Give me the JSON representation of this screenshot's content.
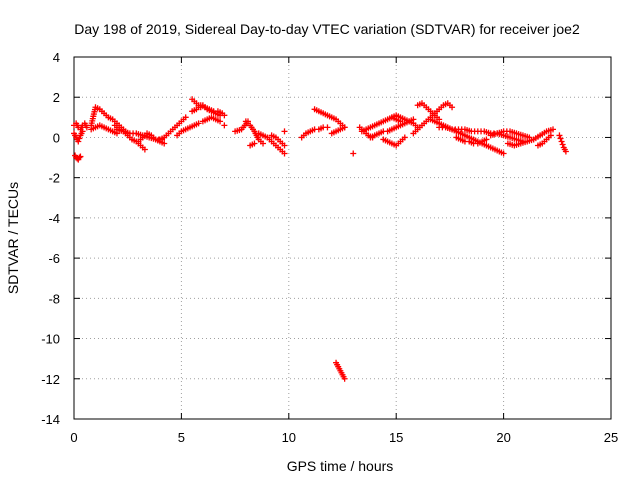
{
  "chart_data": {
    "type": "scatter",
    "title": "Day 198 of 2019, Sidereal Day-to-day VTEC variation (SDTVAR) for receiver joe2",
    "xlabel": "GPS time / hours",
    "ylabel": "SDTVAR / TECUs",
    "xlim": [
      0,
      25
    ],
    "ylim": [
      -14,
      4
    ],
    "xticks": [
      0,
      5,
      10,
      15,
      20,
      25
    ],
    "yticks": [
      -14,
      -12,
      -10,
      -8,
      -6,
      -4,
      -2,
      0,
      2,
      4
    ],
    "grid": true,
    "marker": "plus",
    "color": "#ff0000",
    "segments": [
      {
        "x": [
          0.05,
          0.1,
          0.15,
          0.2,
          0.25,
          0.3
        ],
        "y": [
          -0.9,
          -1.0,
          -1.05,
          -1.1,
          -1.0,
          -0.95
        ]
      },
      {
        "x": [
          0.0,
          0.1,
          0.2,
          0.3,
          0.4,
          0.5,
          0.6
        ],
        "y": [
          0.6,
          0.7,
          0.5,
          0.4,
          0.6,
          0.7,
          0.5
        ]
      },
      {
        "x": [
          0.0,
          0.1,
          0.2,
          0.3,
          0.4
        ],
        "y": [
          0.2,
          0.0,
          -0.2,
          0.1,
          0.3
        ]
      },
      {
        "x": [
          0.8,
          1.0,
          1.2,
          1.4,
          1.6,
          1.8,
          2.0,
          2.2,
          2.4
        ],
        "y": [
          0.6,
          1.5,
          1.4,
          1.2,
          1.0,
          0.9,
          0.7,
          0.5,
          0.3
        ]
      },
      {
        "x": [
          0.8,
          1.0,
          1.2,
          1.4,
          1.6,
          1.8,
          2.0
        ],
        "y": [
          0.4,
          0.5,
          0.6,
          0.5,
          0.4,
          0.3,
          0.2
        ]
      },
      {
        "x": [
          1.9,
          2.1,
          2.3,
          2.5,
          2.7,
          2.9,
          3.1,
          3.3
        ],
        "y": [
          0.6,
          0.4,
          0.3,
          0.1,
          -0.1,
          -0.2,
          -0.4,
          -0.6
        ]
      },
      {
        "x": [
          2.0,
          2.3,
          2.6,
          2.9,
          3.2,
          3.5,
          3.8,
          4.1
        ],
        "y": [
          0.4,
          0.3,
          0.2,
          0.2,
          0.1,
          0.0,
          -0.1,
          -0.1
        ]
      },
      {
        "x": [
          3.0,
          3.2,
          3.4,
          3.6,
          3.8,
          4.0,
          4.2
        ],
        "y": [
          -0.2,
          0.0,
          0.2,
          0.1,
          -0.1,
          -0.2,
          -0.3
        ]
      },
      {
        "x": [
          4.0,
          4.2,
          4.4,
          4.6,
          4.8,
          5.0,
          5.2
        ],
        "y": [
          -0.1,
          0.0,
          0.2,
          0.4,
          0.6,
          0.8,
          1.0
        ]
      },
      {
        "x": [
          4.8,
          5.0,
          5.2,
          5.4,
          5.6,
          5.8
        ],
        "y": [
          0.1,
          0.3,
          0.4,
          0.5,
          0.6,
          0.7
        ]
      },
      {
        "x": [
          5.5,
          5.6,
          5.7,
          5.8,
          5.9,
          6.0,
          6.2,
          6.4,
          6.6,
          6.8
        ],
        "y": [
          1.9,
          1.8,
          1.7,
          1.6,
          1.5,
          1.6,
          1.4,
          1.3,
          1.2,
          1.1
        ]
      },
      {
        "x": [
          5.5,
          5.7,
          5.9,
          6.1,
          6.3,
          6.5,
          6.7,
          6.9,
          7.0
        ],
        "y": [
          1.3,
          1.4,
          1.6,
          1.5,
          1.4,
          1.3,
          1.3,
          1.2,
          1.1
        ]
      },
      {
        "x": [
          6.0,
          6.2,
          6.4,
          6.6,
          6.8
        ],
        "y": [
          0.8,
          0.9,
          1.0,
          0.9,
          0.8
        ]
      },
      {
        "x": [
          7.0
        ],
        "y": [
          0.6
        ]
      },
      {
        "x": [
          7.5,
          7.8,
          8.1
        ],
        "y": [
          0.3,
          0.4,
          0.8
        ]
      },
      {
        "x": [
          8.0,
          8.2,
          8.4,
          8.6,
          8.8
        ],
        "y": [
          0.8,
          0.6,
          0.3,
          -0.1,
          -0.3
        ]
      },
      {
        "x": [
          8.2,
          8.4
        ],
        "y": [
          -0.4,
          -0.3
        ]
      },
      {
        "x": [
          8.6,
          8.8,
          9.0,
          9.2,
          9.4,
          9.6,
          9.8
        ],
        "y": [
          0.2,
          0.1,
          0.0,
          -0.2,
          -0.4,
          -0.6,
          -0.8
        ]
      },
      {
        "x": [
          9.2,
          9.4,
          9.6,
          9.8
        ],
        "y": [
          0.1,
          0.0,
          -0.2,
          -0.4
        ]
      },
      {
        "x": [
          9.8
        ],
        "y": [
          0.3
        ]
      },
      {
        "x": [
          10.6,
          10.8,
          11.0,
          11.2,
          11.4,
          11.6,
          11.8
        ],
        "y": [
          0.0,
          0.2,
          0.3,
          0.4,
          0.4,
          0.5,
          0.5
        ]
      },
      {
        "x": [
          11.2,
          11.4,
          11.6,
          11.8,
          12.0,
          12.2,
          12.4,
          12.6
        ],
        "y": [
          1.4,
          1.3,
          1.2,
          1.1,
          1.0,
          0.9,
          0.7,
          0.5
        ]
      },
      {
        "x": [
          12.0,
          12.2,
          12.4,
          12.6
        ],
        "y": [
          0.2,
          0.3,
          0.4,
          0.5
        ]
      },
      {
        "x": [
          12.2,
          12.25,
          12.3,
          12.35,
          12.4,
          12.45,
          12.5,
          12.55,
          12.6
        ],
        "y": [
          -11.2,
          -11.3,
          -11.4,
          -11.5,
          -11.6,
          -11.7,
          -11.8,
          -11.9,
          -12.0
        ]
      },
      {
        "x": [
          13.0
        ],
        "y": [
          -0.8
        ]
      },
      {
        "x": [
          13.3,
          13.5,
          13.7,
          13.9
        ],
        "y": [
          0.5,
          0.3,
          0.1,
          0.0
        ]
      },
      {
        "x": [
          13.4,
          13.6,
          13.8,
          14.0,
          14.2,
          14.4,
          14.6,
          14.8,
          15.0,
          15.2
        ],
        "y": [
          0.3,
          0.4,
          0.5,
          0.6,
          0.7,
          0.8,
          0.9,
          1.0,
          0.9,
          0.8
        ]
      },
      {
        "x": [
          13.8,
          14.0,
          14.2,
          14.4,
          14.6,
          14.8,
          15.0,
          15.2,
          15.4,
          15.6,
          15.8
        ],
        "y": [
          0.0,
          0.1,
          0.2,
          0.3,
          0.3,
          0.4,
          0.5,
          0.6,
          0.7,
          0.8,
          0.9
        ]
      },
      {
        "x": [
          14.4,
          14.6,
          14.8,
          15.0,
          15.2,
          15.4
        ],
        "y": [
          -0.1,
          -0.2,
          -0.3,
          -0.4,
          -0.2,
          0.0
        ]
      },
      {
        "x": [
          14.8,
          15.0,
          15.2,
          15.4,
          15.6,
          15.8,
          16.0
        ],
        "y": [
          1.0,
          1.1,
          1.0,
          0.9,
          0.8,
          0.7,
          0.5
        ]
      },
      {
        "x": [
          15.8,
          16.0,
          16.2,
          16.4,
          16.6,
          16.8,
          17.0,
          17.2,
          17.4,
          17.6
        ],
        "y": [
          0.2,
          0.4,
          0.6,
          0.8,
          1.0,
          1.2,
          1.4,
          1.6,
          1.7,
          1.5
        ]
      },
      {
        "x": [
          16.0,
          16.2,
          16.4,
          16.6,
          16.8,
          17.0
        ],
        "y": [
          1.6,
          1.7,
          1.5,
          1.3,
          1.1,
          0.9
        ]
      },
      {
        "x": [
          16.6,
          16.8,
          17.0,
          17.2,
          17.4,
          17.6,
          17.8,
          18.0,
          18.2,
          18.4,
          18.6,
          18.8,
          19.0,
          19.2,
          19.4,
          19.6,
          19.8,
          20.0
        ],
        "y": [
          0.9,
          0.8,
          0.7,
          0.6,
          0.5,
          0.4,
          0.3,
          0.2,
          0.1,
          0.0,
          -0.1,
          -0.2,
          -0.3,
          -0.4,
          -0.5,
          -0.6,
          -0.7,
          -0.8
        ]
      },
      {
        "x": [
          17.0,
          17.3,
          17.6,
          17.9,
          18.2,
          18.5,
          18.8,
          19.1,
          19.4,
          19.7,
          20.0,
          20.3,
          20.6,
          20.9
        ],
        "y": [
          0.5,
          0.5,
          0.4,
          0.4,
          0.4,
          0.3,
          0.3,
          0.3,
          0.2,
          0.2,
          0.1,
          0.0,
          -0.1,
          -0.2
        ]
      },
      {
        "x": [
          17.8,
          18.0,
          18.2,
          18.4,
          18.6,
          18.8,
          19.0,
          19.2
        ],
        "y": [
          0.0,
          -0.1,
          -0.2,
          -0.2,
          -0.3,
          -0.3,
          -0.2,
          -0.1
        ]
      },
      {
        "x": [
          19.4,
          19.7,
          20.0,
          20.3,
          20.6,
          20.9,
          21.2
        ],
        "y": [
          0.1,
          0.2,
          0.3,
          0.3,
          0.2,
          0.1,
          0.0
        ]
      },
      {
        "x": [
          20.2,
          20.5,
          20.8,
          21.1,
          21.4,
          21.7,
          22.0,
          22.3
        ],
        "y": [
          -0.3,
          -0.4,
          -0.3,
          -0.2,
          -0.1,
          0.1,
          0.3,
          0.4
        ]
      },
      {
        "x": [
          21.6,
          21.8,
          22.0,
          22.2
        ],
        "y": [
          -0.4,
          -0.3,
          -0.1,
          0.1
        ]
      },
      {
        "x": [
          22.6,
          22.7,
          22.8,
          22.9
        ],
        "y": [
          0.1,
          -0.2,
          -0.5,
          -0.7
        ]
      }
    ]
  }
}
